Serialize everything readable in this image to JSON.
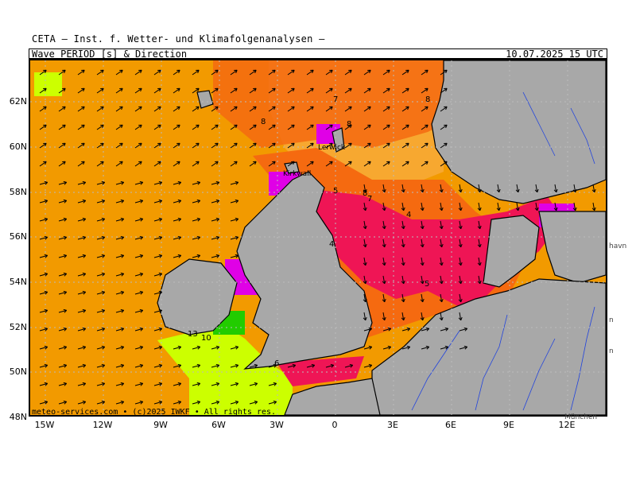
{
  "header": {
    "title": "CETA – Inst. f. Wetter- und Klimafolgenanalysen –",
    "subtitle": "Wave_PERIOD_[s]_&_Direction",
    "datetime": "10.07.2025 15 UTC"
  },
  "map": {
    "lat_labels": [
      "62N",
      "60N",
      "58N",
      "56N",
      "54N",
      "52N",
      "50N",
      "48N"
    ],
    "lon_labels": [
      "15W",
      "12W",
      "9W",
      "6W",
      "3W",
      "0",
      "3E",
      "6E",
      "9E",
      "12E"
    ],
    "period_labels": [
      {
        "text": "7",
        "area": "north-sea-north"
      },
      {
        "text": "8",
        "area": "shetland-north"
      },
      {
        "text": "8",
        "area": "faroe-shetland"
      },
      {
        "text": "8",
        "area": "norway-coast"
      },
      {
        "text": "5",
        "area": "scotland-east"
      },
      {
        "text": "8",
        "area": "central-north-sea"
      },
      {
        "text": "7",
        "area": "central-north-sea"
      },
      {
        "text": "4",
        "area": "skagerrak-south"
      },
      {
        "text": "4",
        "area": "southern-north-sea"
      },
      {
        "text": "5",
        "area": "german-bight"
      },
      {
        "text": "13",
        "area": "irish-sea-south"
      },
      {
        "text": "10",
        "area": "celtic-sea"
      },
      {
        "text": "6",
        "area": "english-channel"
      }
    ],
    "place_labels": [
      "Lerwick",
      "Kirkwall"
    ],
    "edge_labels": [
      "havn",
      "n",
      "n",
      "München"
    ],
    "colors": {
      "ocean_orange": "#f29a00",
      "dark_orange": "#f56a10",
      "light_orange": "#f7a830",
      "crimson": "#ef1555",
      "magenta": "#e000e6",
      "lime": "#ccff00",
      "green": "#22cc00",
      "land": "#a8a8a8",
      "border": "#000000",
      "rivers": "#2244dd"
    }
  },
  "footer": {
    "copyright": "meteo-services.com • (c)2025 IWKF • All rights res."
  }
}
